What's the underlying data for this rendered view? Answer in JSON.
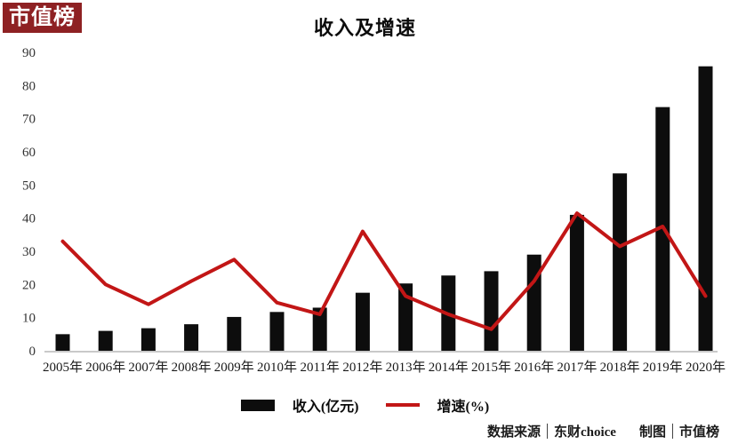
{
  "logo": {
    "text": "市值榜"
  },
  "title": "收入及增速",
  "legend": {
    "items": [
      {
        "label": "收入(亿元)",
        "swatch": "bar"
      },
      {
        "label": "增速(%)",
        "swatch": "line"
      }
    ]
  },
  "footer": {
    "source_label": "数据来源",
    "source_value": "东财choice",
    "chart_by_label": "制图",
    "chart_by_value": "市值榜"
  },
  "colors": {
    "bar": "#0d0d0d",
    "line": "#c21616",
    "logo_bg": "#8e2123",
    "axis_text": "#333333",
    "x_label_text": "#1a1a1a",
    "baseline": "#c9c9c9"
  },
  "chart_data": {
    "type": "combo",
    "title": "收入及增速",
    "categories": [
      "2005年",
      "2006年",
      "2007年",
      "2008年",
      "2009年",
      "2010年",
      "2011年",
      "2012年",
      "2013年",
      "2014年",
      "2015年",
      "2016年",
      "2017年",
      "2018年",
      "2019年",
      "2020年"
    ],
    "series": [
      {
        "name": "收入(亿元)",
        "type": "bar",
        "values": [
          5,
          6,
          6.8,
          8,
          10.2,
          11.7,
          13,
          17.5,
          20.3,
          22.7,
          24,
          29,
          41,
          53.5,
          73.5,
          85.8
        ]
      },
      {
        "name": "增速(%)",
        "type": "line",
        "values": [
          33,
          20,
          14,
          21,
          27.5,
          14.5,
          11,
          36,
          16.5,
          11,
          6.5,
          21,
          41.5,
          31.5,
          37.5,
          16.5
        ]
      }
    ],
    "xlabel": "",
    "ylabel": "",
    "ylim": [
      0,
      90
    ],
    "yticks": [
      0,
      10,
      20,
      30,
      40,
      50,
      60,
      70,
      80,
      90
    ],
    "grid": false,
    "legend_position": "bottom"
  }
}
